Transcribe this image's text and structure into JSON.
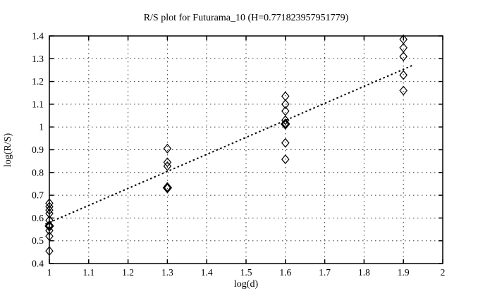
{
  "title": "R/S plot for Futurama_10 (H=0.771823957951779)",
  "colors": {
    "background": "#ffffff",
    "frame": "#000000",
    "grid": "#333333",
    "marker": "#000000",
    "trend": "#000000",
    "text": "#000000"
  },
  "chart_data": {
    "type": "scatter",
    "title": "R/S plot for Futurama_10 (H=0.771823957951779)",
    "xlabel": "log(d)",
    "ylabel": "log(R/S)",
    "xlim": [
      1,
      2
    ],
    "ylim": [
      0.4,
      1.4
    ],
    "grid": true,
    "legend_position": "none",
    "xtick_values": [
      1,
      1.1,
      1.2,
      1.3,
      1.4,
      1.5,
      1.6,
      1.7,
      1.8,
      1.9,
      2
    ],
    "xtick_labels": [
      "1",
      "1.1",
      "1.2",
      "1.3",
      "1.4",
      "1.5",
      "1.6",
      "1.7",
      "1.8",
      "1.9",
      "2"
    ],
    "ytick_values": [
      0.4,
      0.5,
      0.6,
      0.7,
      0.8,
      0.9,
      1,
      1.1,
      1.2,
      1.3,
      1.4
    ],
    "ytick_labels": [
      "0.4",
      "0.5",
      "0.6",
      "0.7",
      "0.8",
      "0.9",
      "1",
      "1.1",
      "1.2",
      "1.3",
      "1.4"
    ],
    "series": [
      {
        "name": "rs-points",
        "marker": "diamond-open",
        "points": [
          {
            "x": 1.0,
            "y": 0.665
          },
          {
            "x": 1.0,
            "y": 0.65
          },
          {
            "x": 1.0,
            "y": 0.635
          },
          {
            "x": 1.0,
            "y": 0.62
          },
          {
            "x": 1.0,
            "y": 0.59
          },
          {
            "x": 1.0,
            "y": 0.545
          },
          {
            "x": 1.0,
            "y": 0.52
          },
          {
            "x": 1.0,
            "y": 0.455
          },
          {
            "x": 1.3,
            "y": 0.905
          },
          {
            "x": 1.3,
            "y": 0.845
          },
          {
            "x": 1.3,
            "y": 0.828
          },
          {
            "x": 1.6,
            "y": 1.135
          },
          {
            "x": 1.6,
            "y": 1.1
          },
          {
            "x": 1.6,
            "y": 1.07
          },
          {
            "x": 1.6,
            "y": 1.03
          },
          {
            "x": 1.6,
            "y": 0.93
          },
          {
            "x": 1.6,
            "y": 0.858
          },
          {
            "x": 1.9,
            "y": 1.385
          },
          {
            "x": 1.9,
            "y": 1.348
          },
          {
            "x": 1.9,
            "y": 1.31
          },
          {
            "x": 1.9,
            "y": 1.228
          },
          {
            "x": 1.9,
            "y": 1.16
          }
        ]
      },
      {
        "name": "rs-points-emphasized",
        "marker": "diamond-bold",
        "points": [
          {
            "x": 1.0,
            "y": 0.565
          },
          {
            "x": 1.3,
            "y": 0.733
          },
          {
            "x": 1.6,
            "y": 1.013
          }
        ]
      }
    ],
    "trend_line": {
      "style": "dotted",
      "hurst_exponent": "0.771823957951779",
      "x1": 0.99,
      "y1": 0.573,
      "x2": 1.925,
      "y2": 1.272
    }
  }
}
